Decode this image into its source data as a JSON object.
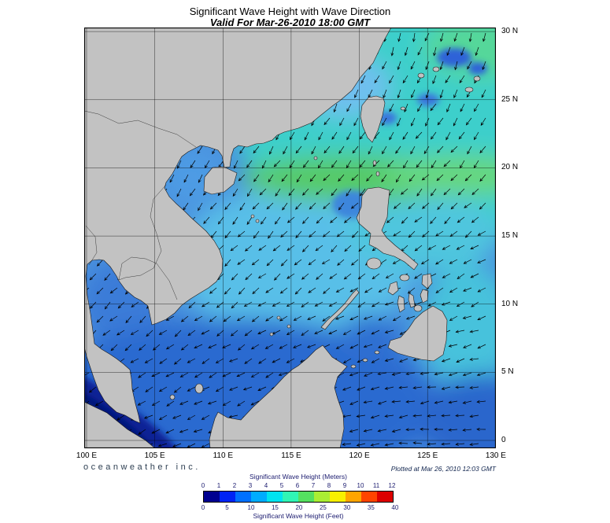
{
  "header": {
    "title": "Significant Wave Height with Wave Direction",
    "subtitle": "Valid For Mar-26-2010 18:00 GMT"
  },
  "footer": {
    "branding": "oceanweather inc.",
    "plotted_at": "Plotted at Mar 26, 2010 12:03 GMT"
  },
  "chart_data": {
    "type": "heatmap",
    "title": "Significant Wave Height with Wave Direction",
    "valid_for": "Mar-26-2010 18:00 GMT",
    "plotted_at": "Mar 26, 2010 12:03 GMT",
    "region": "South China Sea / Philippines / Western Pacific",
    "projection": {
      "lon_range": [
        100,
        130
      ],
      "lat_range": [
        0,
        30
      ]
    },
    "axes": {
      "lon_ticks": [
        {
          "lon": 100,
          "label": "100 E"
        },
        {
          "lon": 105,
          "label": "105 E"
        },
        {
          "lon": 110,
          "label": "110 E"
        },
        {
          "lon": 115,
          "label": "115 E"
        },
        {
          "lon": 120,
          "label": "120 E"
        },
        {
          "lon": 125,
          "label": "125 E"
        },
        {
          "lon": 130,
          "label": "130 E"
        }
      ],
      "lat_ticks": [
        {
          "lat": 0,
          "label": "0"
        },
        {
          "lat": 5,
          "label": "5 N"
        },
        {
          "lat": 10,
          "label": "10 N"
        },
        {
          "lat": 15,
          "label": "15 N"
        },
        {
          "lat": 20,
          "label": "20 N"
        },
        {
          "lat": 25,
          "label": "25 N"
        },
        {
          "lat": 30,
          "label": "30 N"
        }
      ]
    },
    "colorbar": {
      "title_meters": "Significant Wave Height (Meters)",
      "title_feet": "Significant Wave Height (Feet)",
      "meters_ticks": [
        0,
        1,
        2,
        3,
        4,
        5,
        6,
        7,
        8,
        9,
        10,
        11,
        12
      ],
      "feet_ticks": [
        0,
        5,
        10,
        15,
        20,
        25,
        30,
        35,
        40
      ],
      "range_m": [
        0,
        12
      ],
      "segment_colors": [
        "#000090",
        "#0023F5",
        "#0070FF",
        "#00ACFF",
        "#00E4F0",
        "#30F5B5",
        "#55E060",
        "#AAEE33",
        "#F8F000",
        "#FFA500",
        "#FF4400",
        "#DD0000"
      ]
    },
    "vector_overlay": {
      "variable": "wave direction",
      "style": "arrows",
      "predominant_direction": "toward the southwest (northeast monsoon swell), veering westward in the far south"
    },
    "field_estimates_m": [
      {
        "area": "Northwest Pacific / Ryukyu area",
        "value": "4-5"
      },
      {
        "area": "Luzon Strait band 18-20N",
        "value": "5-6"
      },
      {
        "area": "Central South China Sea",
        "value": "3-4"
      },
      {
        "area": "Taiwan Strait / China coast",
        "value": "2-3"
      },
      {
        "area": "Southern South China Sea / Gulf of Thailand",
        "value": "1-2"
      },
      {
        "area": "East of Philippines",
        "value": "3-4"
      },
      {
        "area": "Sulu and Celebes Seas",
        "value": "1-2"
      },
      {
        "area": "Strait of Malacca",
        "value": "0-1"
      }
    ]
  }
}
